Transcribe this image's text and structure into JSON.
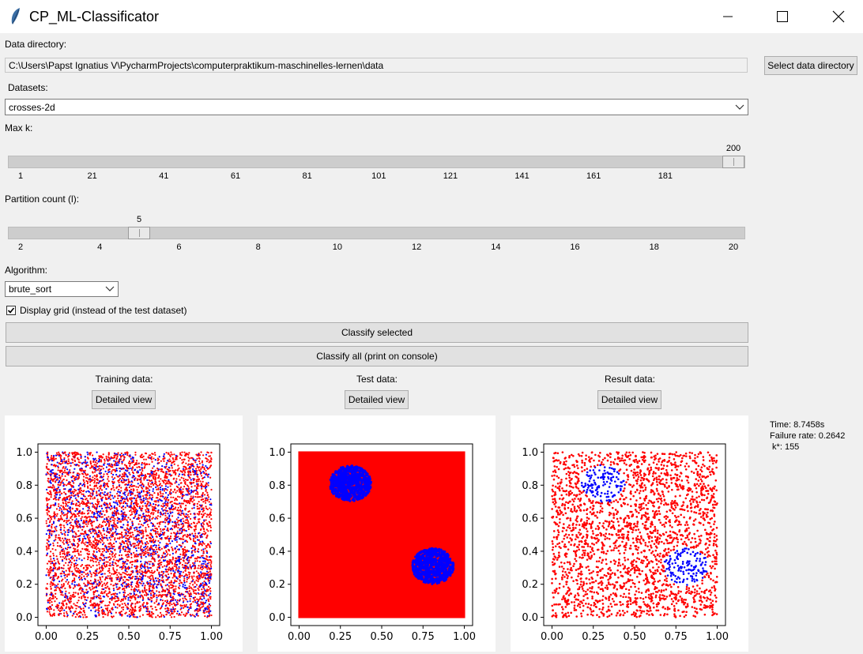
{
  "window": {
    "title": "CP_ML-Classificator",
    "icon": "feather-icon"
  },
  "data_directory": {
    "label": "Data directory:",
    "path": "C:\\Users\\Papst Ignatius V\\PycharmProjects\\computerpraktikum-maschinelles-lernen\\data",
    "button_label": "Select data directory"
  },
  "datasets": {
    "label": "Datasets:",
    "selected": "crosses-2d"
  },
  "max_k": {
    "label": "Max k:",
    "value": 200,
    "min": 1,
    "max": 200,
    "ticks": [
      "1",
      "21",
      "41",
      "61",
      "81",
      "101",
      "121",
      "141",
      "161",
      "181"
    ]
  },
  "partition": {
    "label": "Partition count (l):",
    "value": 5,
    "min": 2,
    "max": 20,
    "ticks": [
      "2",
      "4",
      "6",
      "8",
      "10",
      "12",
      "14",
      "16",
      "18",
      "20"
    ]
  },
  "algorithm": {
    "label": "Algorithm:",
    "selected": "brute_sort"
  },
  "display_grid": {
    "label": "Display grid (instead of the test dataset)",
    "checked": true
  },
  "actions": {
    "classify_selected": "Classify selected",
    "classify_all": "Classify all (print on console)"
  },
  "panels": [
    {
      "title": "Training data:",
      "button": "Detailed view"
    },
    {
      "title": "Test data:",
      "button": "Detailed view"
    },
    {
      "title": "Result data:",
      "button": "Detailed view"
    }
  ],
  "results": {
    "time": "Time: 8.7458s",
    "failure_rate": "Failure rate: 0.2642",
    "k_star": " k*: 155"
  },
  "colors": {
    "class_a": "#ff0000",
    "class_b": "#0000ff"
  },
  "chart_data": [
    {
      "type": "scatter",
      "name": "Training data",
      "xlim": [
        -0.05,
        1.05
      ],
      "ylim": [
        -0.05,
        1.05
      ],
      "xticks": [
        "0.00",
        "0.25",
        "0.50",
        "0.75",
        "1.00"
      ],
      "yticks": [
        "0.0",
        "0.2",
        "0.4",
        "0.6",
        "0.8",
        "1.0"
      ],
      "series": [
        {
          "color": "#ff0000",
          "distribution": "uniform over [0,1]x[0,1]",
          "approx_points": 5000
        },
        {
          "color": "#0000ff",
          "distribution": "uniform, denser around (0.3,0.8) and (0.8,0.3)",
          "approx_points": 2500
        }
      ]
    },
    {
      "type": "scatter",
      "name": "Test data (grid)",
      "xlim": [
        -0.05,
        1.05
      ],
      "ylim": [
        -0.05,
        1.05
      ],
      "xticks": [
        "0.00",
        "0.25",
        "0.50",
        "0.75",
        "1.00"
      ],
      "yticks": [
        "0.0",
        "0.2",
        "0.4",
        "0.6",
        "0.8",
        "1.0"
      ],
      "series": [
        {
          "color": "#ff0000",
          "region": "full square [0,1]x[0,1]"
        },
        {
          "color": "#0000ff",
          "blobs": [
            {
              "cx": 0.31,
              "cy": 0.81,
              "r": 0.12
            },
            {
              "cx": 0.81,
              "cy": 0.31,
              "r": 0.12
            }
          ]
        }
      ]
    },
    {
      "type": "scatter",
      "name": "Result data",
      "xlim": [
        -0.05,
        1.05
      ],
      "ylim": [
        -0.05,
        1.05
      ],
      "xticks": [
        "0.00",
        "0.25",
        "0.50",
        "0.75",
        "1.00"
      ],
      "yticks": [
        "0.0",
        "0.2",
        "0.4",
        "0.6",
        "0.8",
        "1.0"
      ],
      "series": [
        {
          "color": "#ff0000",
          "distribution": "uniform over [0,1]x[0,1]",
          "approx_points": 2500
        },
        {
          "color": "#0000ff",
          "blobs": [
            {
              "cx": 0.31,
              "cy": 0.81,
              "r": 0.12
            },
            {
              "cx": 0.81,
              "cy": 0.31,
              "r": 0.12
            }
          ]
        }
      ]
    }
  ]
}
